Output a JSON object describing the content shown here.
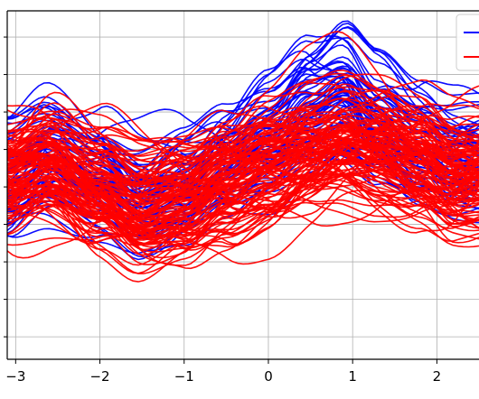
{
  "chart_data": {
    "type": "line",
    "title": "",
    "xlabel": "",
    "ylabel": "",
    "xlim": [
      -3.1,
      2.5
    ],
    "ylim": [
      -2.3,
      2.35
    ],
    "grid": true,
    "legend_position": "top-right",
    "x_ticks": [
      -3,
      -2,
      -1,
      0,
      1,
      2
    ],
    "x_tick_labels": [
      "−3",
      "−2",
      "−1",
      "0",
      "1",
      "2"
    ],
    "y_ticks": [
      -2,
      -1.5,
      -1,
      -0.5,
      0,
      0.5,
      1,
      1.5,
      2
    ],
    "series": [
      {
        "color": "#0000ff",
        "line_count": 60,
        "representative": {
          "x": [
            -3.1,
            -2.6,
            -2.0,
            -1.5,
            -1.0,
            -0.5,
            0.0,
            0.5,
            0.9,
            1.3,
            1.8,
            2.2,
            2.5
          ],
          "y": [
            0.1,
            0.45,
            0.2,
            -0.1,
            0.05,
            0.35,
            0.6,
            1.0,
            1.2,
            0.85,
            0.55,
            0.4,
            0.4
          ]
        }
      },
      {
        "color": "#ff0000",
        "line_count": 120,
        "representative": {
          "x": [
            -3.1,
            -2.6,
            -2.0,
            -1.5,
            -1.0,
            -0.5,
            0.0,
            0.5,
            0.9,
            1.3,
            1.8,
            2.2,
            2.5
          ],
          "y": [
            0.15,
            0.3,
            0.0,
            -0.25,
            -0.15,
            0.1,
            0.3,
            0.45,
            0.55,
            0.5,
            0.4,
            0.2,
            0.2
          ]
        }
      }
    ]
  }
}
